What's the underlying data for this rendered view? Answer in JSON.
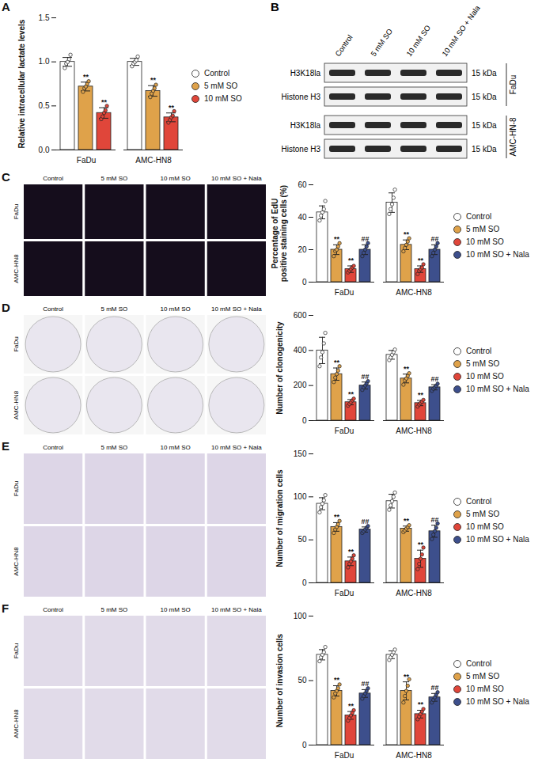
{
  "chart_data": [
    {
      "panel": "A",
      "type": "bar",
      "y_label": "Relative intracellular lactate levels",
      "categories": [
        "FaDu",
        "AMC-HN8"
      ],
      "ylim": [
        0,
        1.5
      ],
      "yticks": [
        {
          "value": 0,
          "label": "0.0"
        },
        0.5,
        {
          "value": 1,
          "label": "1.0"
        },
        1.5
      ],
      "legend": "right",
      "series": [
        {
          "name": "Control",
          "color": "#ffffff",
          "values": [
            1.0,
            1.0
          ],
          "errors": [
            0.05,
            0.04
          ],
          "points": [
            [
              0.93,
              0.98,
              1.0,
              1.03,
              1.08
            ],
            [
              0.95,
              0.98,
              1.0,
              1.02,
              1.06
            ]
          ],
          "significance": [
            null,
            null
          ]
        },
        {
          "name": "5 mM SO",
          "color": "#dfa24a",
          "values": [
            0.72,
            0.67
          ],
          "errors": [
            0.05,
            0.06
          ],
          "points": [
            [
              0.66,
              0.7,
              0.72,
              0.75,
              0.78
            ],
            [
              0.6,
              0.64,
              0.67,
              0.7,
              0.74
            ]
          ],
          "significance": [
            "**",
            "**"
          ]
        },
        {
          "name": "10 mM SO",
          "color": "#e0463a",
          "values": [
            0.42,
            0.37
          ],
          "errors": [
            0.06,
            0.05
          ],
          "points": [
            [
              0.35,
              0.38,
              0.42,
              0.45,
              0.5
            ],
            [
              0.31,
              0.34,
              0.37,
              0.39,
              0.44
            ]
          ],
          "significance": [
            "**",
            "**"
          ]
        }
      ]
    },
    {
      "panel": "C",
      "type": "bar",
      "y_label": "Percentage of EdU positive staining cells (%)",
      "categories": [
        "FaDu",
        "AMC-HN8"
      ],
      "ylim": [
        0,
        60
      ],
      "yticks": [
        0,
        20,
        40,
        60
      ],
      "legend": "right",
      "series": [
        {
          "name": "Control",
          "color": "#ffffff",
          "values": [
            43,
            49
          ],
          "errors": [
            4,
            6
          ],
          "points": [
            [
              38,
              41,
              43,
              45,
              50
            ],
            [
              42,
              45,
              48,
              52,
              57
            ]
          ],
          "significance": [
            null,
            null
          ]
        },
        {
          "name": "5 mM SO",
          "color": "#dfa24a",
          "values": [
            20,
            23
          ],
          "errors": [
            3,
            3
          ],
          "points": [
            [
              16,
              19,
              20,
              22,
              24
            ],
            [
              19,
              21,
              23,
              25,
              27
            ]
          ],
          "significance": [
            "**",
            "**"
          ]
        },
        {
          "name": "10 mM SO",
          "color": "#e0463a",
          "values": [
            8,
            8
          ],
          "errors": [
            2,
            2
          ],
          "points": [
            [
              6,
              7,
              8,
              9,
              10
            ],
            [
              5,
              7,
              8,
              9,
              11
            ]
          ],
          "significance": [
            "**",
            "**"
          ]
        },
        {
          "name": "10 mM SO + Nala",
          "color": "#3d4f8c",
          "values": [
            20,
            20
          ],
          "errors": [
            3,
            3
          ],
          "points": [
            [
              16,
              18,
              20,
              22,
              24
            ],
            [
              16,
              18,
              20,
              22,
              24
            ]
          ],
          "significance": [
            "##",
            "##"
          ]
        }
      ]
    },
    {
      "panel": "D",
      "type": "bar",
      "y_label": "Number of clonogenicity",
      "categories": [
        "FaDu",
        "AMC-HN8"
      ],
      "ylim": [
        0,
        600
      ],
      "yticks": [
        0,
        200,
        400,
        600
      ],
      "legend": "right",
      "series": [
        {
          "name": "Control",
          "color": "#ffffff",
          "values": [
            400,
            375
          ],
          "errors": [
            75,
            25
          ],
          "points": [
            [
              310,
              360,
              390,
              440,
              500
            ],
            [
              345,
              360,
              375,
              390,
              405
            ]
          ],
          "significance": [
            null,
            null
          ]
        },
        {
          "name": "5 mM SO",
          "color": "#dfa24a",
          "values": [
            265,
            240
          ],
          "errors": [
            35,
            25
          ],
          "points": [
            [
              220,
              245,
              265,
              285,
              310
            ],
            [
              205,
              230,
              240,
              255,
              270
            ]
          ],
          "significance": [
            "**",
            "**"
          ]
        },
        {
          "name": "10 mM SO",
          "color": "#e0463a",
          "values": [
            105,
            100
          ],
          "errors": [
            15,
            15
          ],
          "points": [
            [
              85,
              95,
              105,
              115,
              125
            ],
            [
              80,
              92,
              100,
              108,
              118
            ]
          ],
          "significance": [
            "**",
            "**"
          ]
        },
        {
          "name": "10 mM SO + Nala",
          "color": "#3d4f8c",
          "values": [
            200,
            190
          ],
          "errors": [
            20,
            15
          ],
          "points": [
            [
              175,
              190,
              200,
              212,
              225
            ],
            [
              170,
              182,
              190,
              198,
              210
            ]
          ],
          "significance": [
            "##",
            "##"
          ]
        }
      ]
    },
    {
      "panel": "E",
      "type": "bar",
      "y_label": "Number of migration cells",
      "categories": [
        "FaDu",
        "AMC-HN8"
      ],
      "ylim": [
        0,
        150
      ],
      "yticks": [
        0,
        50,
        100,
        150
      ],
      "legend": "right",
      "series": [
        {
          "name": "Control",
          "color": "#ffffff",
          "values": [
            92,
            95
          ],
          "errors": [
            7,
            8
          ],
          "points": [
            [
              82,
              88,
              92,
              96,
              102
            ],
            [
              85,
              90,
              95,
              100,
              105
            ]
          ],
          "significance": [
            null,
            null
          ]
        },
        {
          "name": "5 mM SO",
          "color": "#dfa24a",
          "values": [
            65,
            63
          ],
          "errors": [
            5,
            3
          ],
          "points": [
            [
              58,
              62,
              65,
              68,
              72
            ],
            [
              59,
              61,
              63,
              65,
              67
            ]
          ],
          "significance": [
            "**",
            "**"
          ]
        },
        {
          "name": "10 mM SO",
          "color": "#e0463a",
          "values": [
            25,
            28
          ],
          "errors": [
            5,
            10
          ],
          "points": [
            [
              18,
              22,
              25,
              28,
              32
            ],
            [
              16,
              22,
              28,
              33,
              41
            ]
          ],
          "significance": [
            "**",
            "**"
          ]
        },
        {
          "name": "10 mM SO + Nala",
          "color": "#3d4f8c",
          "values": [
            62,
            60
          ],
          "errors": [
            3,
            7
          ],
          "points": [
            [
              58,
              60,
              62,
              64,
              66
            ],
            [
              51,
              56,
              60,
              64,
              69
            ]
          ],
          "significance": [
            "##",
            "##"
          ]
        }
      ]
    },
    {
      "panel": "F",
      "type": "bar",
      "y_label": "Number of invasion cells",
      "categories": [
        "FaDu",
        "AMC-HN8"
      ],
      "ylim": [
        0,
        100
      ],
      "yticks": [
        0,
        50,
        100
      ],
      "legend": "right",
      "series": [
        {
          "name": "Control",
          "color": "#ffffff",
          "values": [
            70,
            70
          ],
          "errors": [
            4,
            3
          ],
          "points": [
            [
              65,
              68,
              70,
              72,
              76
            ],
            [
              66,
              68,
              70,
              72,
              74
            ]
          ],
          "significance": [
            null,
            null
          ]
        },
        {
          "name": "5 mM SO",
          "color": "#dfa24a",
          "values": [
            42,
            42
          ],
          "errors": [
            4,
            7
          ],
          "points": [
            [
              37,
              40,
              42,
              44,
              47
            ],
            [
              33,
              38,
              42,
              46,
              51
            ]
          ],
          "significance": [
            "**",
            "**"
          ]
        },
        {
          "name": "10 mM SO",
          "color": "#e0463a",
          "values": [
            23,
            24
          ],
          "errors": [
            3,
            3
          ],
          "points": [
            [
              19,
              21,
              23,
              25,
              27
            ],
            [
              20,
              22,
              24,
              26,
              28
            ]
          ],
          "significance": [
            "**",
            "**"
          ]
        },
        {
          "name": "10 mM SO + Nala",
          "color": "#3d4f8c",
          "values": [
            40,
            37
          ],
          "errors": [
            3,
            3
          ],
          "points": [
            [
              36,
              38,
              40,
              42,
              44
            ],
            [
              33,
              35,
              37,
              39,
              41
            ]
          ],
          "significance": [
            "##",
            "##"
          ]
        }
      ]
    }
  ],
  "blot": {
    "panel": "B",
    "lanes": [
      "Control",
      "5 mM SO",
      "10 mM SO",
      "10 mM SO + Nala"
    ],
    "groups": [
      {
        "name": "FaDu",
        "rows": [
          "H3K18la",
          "Histone H3"
        ]
      },
      {
        "name": "AMC-HN-8",
        "rows": [
          "H3K18la",
          "Histone H3"
        ]
      }
    ],
    "size": "15 kDa"
  },
  "micrographs": [
    {
      "columns": [
        "Control",
        "5 mM SO",
        "10 mM SO",
        "10 mM SO + Nala"
      ],
      "rows": [
        "FaDu",
        "AMC-HN8"
      ]
    },
    {
      "columns": [
        "Control",
        "5 mM SO",
        "10 mM SO",
        "10 mM SO + Nala"
      ],
      "rows": [
        "FaDu",
        "AMC-HN8"
      ]
    },
    {
      "columns": [
        "Control",
        "5 mM SO",
        "10 mM SO",
        "10 mM SO + Nala"
      ],
      "rows": [
        "FaDu",
        "AMC-HN8"
      ]
    },
    {
      "columns": [
        "Control",
        "5 mM SO",
        "10 mM SO",
        "10 mM SO + Nala"
      ],
      "rows": [
        "FaDu",
        "AMC-HN8"
      ]
    }
  ]
}
